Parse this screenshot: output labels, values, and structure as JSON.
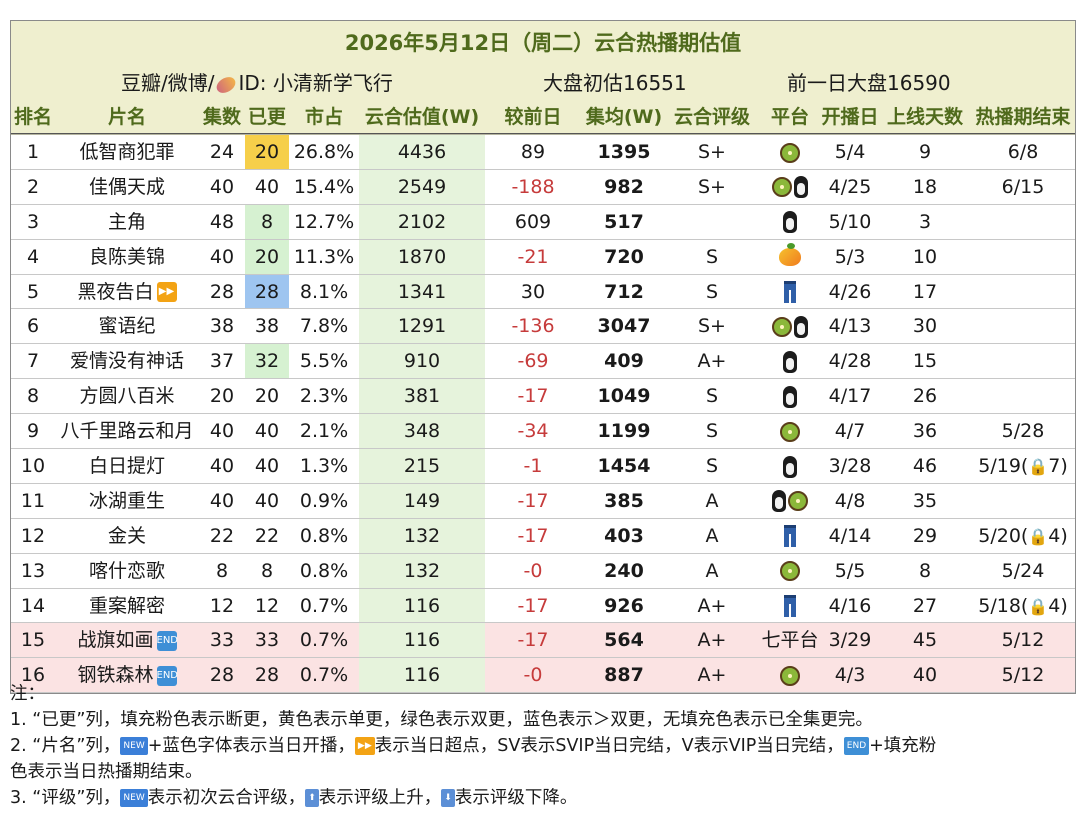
{
  "title": "2026年5月12日（周二）云合热播期估值",
  "info": {
    "source_prefix": "豆瓣/微博/",
    "source_icon": "sweet-potato-icon",
    "source_id": "ID: 小清新学飞行",
    "market_estimate": "大盘初估16551",
    "prev_market": "前一日大盘16590"
  },
  "columns": [
    "排名",
    "片名",
    "集数",
    "已更",
    "市占",
    "云合估值(W)",
    "较前日",
    "集均(W)",
    "云合评级",
    "平台",
    "开播日",
    "上线天数",
    "热播期结束"
  ],
  "rows": [
    {
      "rank": "1",
      "title": "低智商犯罪",
      "badge": "",
      "eps": "24",
      "updated": "20",
      "upd_color": "yellow",
      "share": "26.8%",
      "est": "4436",
      "change": "89",
      "neg": false,
      "avg": "1395",
      "rating": "S+",
      "platforms": [
        "kiwi"
      ],
      "platform_text": "",
      "start": "5/4",
      "days": "9",
      "end": "6/8",
      "lock": "",
      "row_ended": false
    },
    {
      "rank": "2",
      "title": "佳偶天成",
      "badge": "",
      "eps": "40",
      "updated": "40",
      "upd_color": "",
      "share": "15.4%",
      "est": "2549",
      "change": "-188",
      "neg": true,
      "avg": "982",
      "rating": "S+",
      "platforms": [
        "kiwi",
        "penguin"
      ],
      "platform_text": "",
      "start": "4/25",
      "days": "18",
      "end": "6/15",
      "lock": "",
      "row_ended": false
    },
    {
      "rank": "3",
      "title": "主角",
      "badge": "",
      "eps": "48",
      "updated": "8",
      "upd_color": "green",
      "share": "12.7%",
      "est": "2102",
      "change": "609",
      "neg": false,
      "avg": "517",
      "rating": "",
      "platforms": [
        "penguin"
      ],
      "platform_text": "",
      "start": "5/10",
      "days": "3",
      "end": "",
      "lock": "",
      "row_ended": false
    },
    {
      "rank": "4",
      "title": "良陈美锦",
      "badge": "",
      "eps": "40",
      "updated": "20",
      "upd_color": "green",
      "share": "11.3%",
      "est": "1870",
      "change": "-21",
      "neg": true,
      "avg": "720",
      "rating": "S",
      "platforms": [
        "mango"
      ],
      "platform_text": "",
      "start": "5/3",
      "days": "10",
      "end": "",
      "lock": "",
      "row_ended": false
    },
    {
      "rank": "5",
      "title": "黑夜告白",
      "badge": "ff",
      "eps": "28",
      "updated": "28",
      "upd_color": "blue",
      "share": "8.1%",
      "est": "1341",
      "change": "30",
      "neg": false,
      "avg": "712",
      "rating": "S",
      "platforms": [
        "jeans"
      ],
      "platform_text": "",
      "start": "4/26",
      "days": "17",
      "end": "",
      "lock": "",
      "row_ended": false
    },
    {
      "rank": "6",
      "title": "蜜语纪",
      "badge": "",
      "eps": "38",
      "updated": "38",
      "upd_color": "",
      "share": "7.8%",
      "est": "1291",
      "change": "-136",
      "neg": true,
      "avg": "3047",
      "rating": "S+",
      "platforms": [
        "kiwi",
        "penguin"
      ],
      "platform_text": "",
      "start": "4/13",
      "days": "30",
      "end": "",
      "lock": "",
      "row_ended": false
    },
    {
      "rank": "7",
      "title": "爱情没有神话",
      "badge": "",
      "eps": "37",
      "updated": "32",
      "upd_color": "green",
      "share": "5.5%",
      "est": "910",
      "change": "-69",
      "neg": true,
      "avg": "409",
      "rating": "A+",
      "platforms": [
        "penguin"
      ],
      "platform_text": "",
      "start": "4/28",
      "days": "15",
      "end": "",
      "lock": "",
      "row_ended": false
    },
    {
      "rank": "8",
      "title": "方圆八百米",
      "badge": "",
      "eps": "20",
      "updated": "20",
      "upd_color": "",
      "share": "2.3%",
      "est": "381",
      "change": "-17",
      "neg": true,
      "avg": "1049",
      "rating": "S",
      "platforms": [
        "penguin"
      ],
      "platform_text": "",
      "start": "4/17",
      "days": "26",
      "end": "",
      "lock": "",
      "row_ended": false
    },
    {
      "rank": "9",
      "title": "八千里路云和月",
      "badge": "",
      "eps": "40",
      "updated": "40",
      "upd_color": "",
      "share": "2.1%",
      "est": "348",
      "change": "-34",
      "neg": true,
      "avg": "1199",
      "rating": "S",
      "platforms": [
        "kiwi"
      ],
      "platform_text": "",
      "start": "4/7",
      "days": "36",
      "end": "5/28",
      "lock": "",
      "row_ended": false
    },
    {
      "rank": "10",
      "title": "白日提灯",
      "badge": "",
      "eps": "40",
      "updated": "40",
      "upd_color": "",
      "share": "1.3%",
      "est": "215",
      "change": "-1",
      "neg": true,
      "avg": "1454",
      "rating": "S",
      "platforms": [
        "penguin"
      ],
      "platform_text": "",
      "start": "3/28",
      "days": "46",
      "end": "5/19(",
      "lock": "7)",
      "row_ended": false
    },
    {
      "rank": "11",
      "title": "冰湖重生",
      "badge": "",
      "eps": "40",
      "updated": "40",
      "upd_color": "",
      "share": "0.9%",
      "est": "149",
      "change": "-17",
      "neg": true,
      "avg": "385",
      "rating": "A",
      "platforms": [
        "penguin",
        "kiwi"
      ],
      "platform_text": "",
      "start": "4/8",
      "days": "35",
      "end": "",
      "lock": "",
      "row_ended": false
    },
    {
      "rank": "12",
      "title": "金关",
      "badge": "",
      "eps": "22",
      "updated": "22",
      "upd_color": "",
      "share": "0.8%",
      "est": "132",
      "change": "-17",
      "neg": true,
      "avg": "403",
      "rating": "A",
      "platforms": [
        "jeans"
      ],
      "platform_text": "",
      "start": "4/14",
      "days": "29",
      "end": "5/20(",
      "lock": "4)",
      "row_ended": false
    },
    {
      "rank": "13",
      "title": "喀什恋歌",
      "badge": "",
      "eps": "8",
      "updated": "8",
      "upd_color": "",
      "share": "0.8%",
      "est": "132",
      "change": "-0",
      "neg": true,
      "avg": "240",
      "rating": "A",
      "platforms": [
        "kiwi"
      ],
      "platform_text": "",
      "start": "5/5",
      "days": "8",
      "end": "5/24",
      "lock": "",
      "row_ended": false
    },
    {
      "rank": "14",
      "title": "重案解密",
      "badge": "",
      "eps": "12",
      "updated": "12",
      "upd_color": "",
      "share": "0.7%",
      "est": "116",
      "change": "-17",
      "neg": true,
      "avg": "926",
      "rating": "A+",
      "platforms": [
        "jeans"
      ],
      "platform_text": "",
      "start": "4/16",
      "days": "27",
      "end": "5/18(",
      "lock": "4)",
      "row_ended": false
    },
    {
      "rank": "15",
      "title": "战旗如画",
      "badge": "end",
      "eps": "33",
      "updated": "33",
      "upd_color": "",
      "share": "0.7%",
      "est": "116",
      "change": "-17",
      "neg": true,
      "avg": "564",
      "rating": "A+",
      "platforms": [],
      "platform_text": "七平台",
      "start": "3/29",
      "days": "45",
      "end": "5/12",
      "lock": "",
      "row_ended": true
    },
    {
      "rank": "16",
      "title": "钢铁森林",
      "badge": "end",
      "eps": "28",
      "updated": "28",
      "upd_color": "",
      "share": "0.7%",
      "est": "116",
      "change": "-0",
      "neg": true,
      "avg": "887",
      "rating": "A+",
      "platforms": [
        "kiwi"
      ],
      "platform_text": "",
      "start": "4/3",
      "days": "40",
      "end": "5/12",
      "lock": "",
      "row_ended": true
    }
  ],
  "badges": {
    "ff": "▶▶",
    "end": "END",
    "new": "NEW",
    "up": "⬆",
    "down": "⬇"
  },
  "lock_icon": "🔒",
  "notes": {
    "head": "注：",
    "n1": "1. “已更”列，填充粉色表示断更，黄色表示单更，绿色表示双更，蓝色表示＞双更，无填充色表示已全集更完。",
    "n2a": "2. “片名”列，",
    "n2b": "+蓝色字体表示当日开播，",
    "n2c": "表示当日超点，SV表示SVIP当日完结，V表示VIP当日完结，",
    "n2d": "+填充粉",
    "n2e": "色表示当日热播期结束。",
    "n3a": "3. “评级”列，",
    "n3b": "表示初次云合评级，",
    "n3c": "表示评级上升，",
    "n3d": "表示评级下降。"
  }
}
